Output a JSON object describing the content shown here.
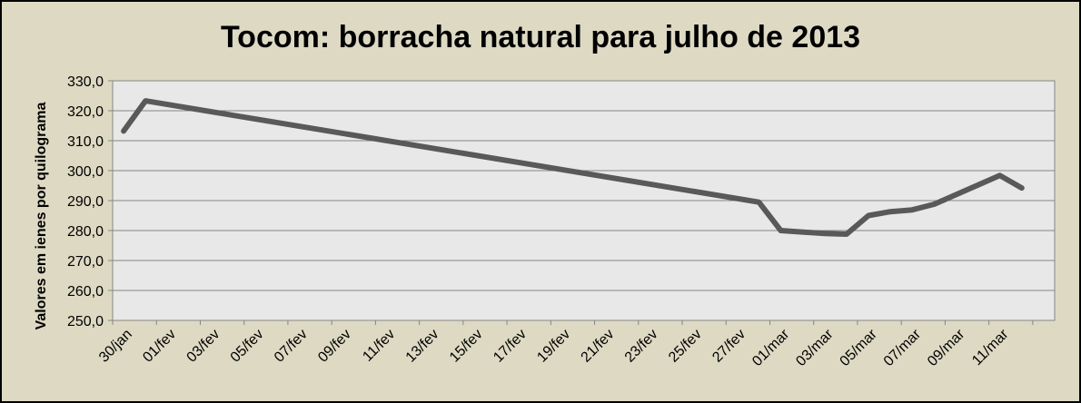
{
  "chart_data": {
    "type": "line",
    "title": "Tocom: borracha natural para julho de 2013",
    "xlabel": "",
    "ylabel": "Valores em ienes por quilograma",
    "ylim": [
      250,
      330
    ],
    "y_ticks": [
      "330,0",
      "320,0",
      "310,0",
      "300,0",
      "290,0",
      "280,0",
      "270,0",
      "260,0",
      "250,0"
    ],
    "y_tick_values": [
      330,
      320,
      310,
      300,
      290,
      280,
      270,
      260,
      250
    ],
    "x_tick_labels": [
      "30/jan",
      "01/fev",
      "03/fev",
      "05/fev",
      "07/fev",
      "09/fev",
      "11/fev",
      "13/fev",
      "15/fev",
      "17/fev",
      "19/fev",
      "21/fev",
      "23/fev",
      "25/fev",
      "27/fev",
      "01/mar",
      "03/mar",
      "05/mar",
      "07/mar",
      "09/mar",
      "11/mar"
    ],
    "grid": true,
    "legend": "none",
    "series": [
      {
        "color": "#595959",
        "x": [
          "30/jan",
          "31/jan",
          "28/fev",
          "01/mar",
          "03/mar",
          "04/mar",
          "05/mar",
          "06/mar",
          "07/mar",
          "08/mar",
          "11/mar",
          "12/mar"
        ],
        "values": [
          313.2,
          323.3,
          289.5,
          280.0,
          279.0,
          278.8,
          285.0,
          286.3,
          286.9,
          288.8,
          298.4,
          294.2
        ]
      }
    ]
  }
}
